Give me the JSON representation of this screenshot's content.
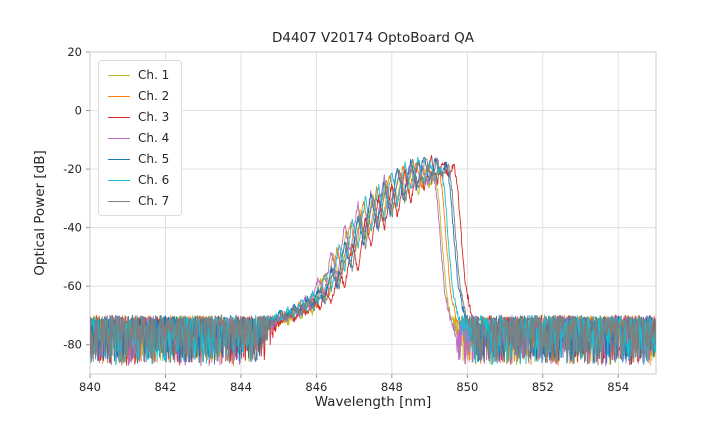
{
  "figure": {
    "title": "D4407 V20174 OptoBoard QA",
    "xlabel": "Wavelength [nm]",
    "ylabel": "Optical Power [dB]"
  },
  "chart_data": {
    "type": "line",
    "title": "D4407 V20174 OptoBoard QA",
    "xlabel": "Wavelength [nm]",
    "ylabel": "Optical Power [dB]",
    "xlim": [
      840,
      855
    ],
    "ylim": [
      -90,
      20
    ],
    "xticks": [
      840,
      842,
      844,
      846,
      848,
      850,
      852,
      854
    ],
    "yticks": [
      20,
      0,
      -20,
      -40,
      -60,
      -80
    ],
    "grid": true,
    "grid_color": "#dddddd",
    "axis_color": "#cccccc",
    "text_color": "#262626",
    "background": "#ffffff",
    "legend_position": "upper left",
    "sample_step_nm": 0.012,
    "noise": {
      "floor_top_db": -69.8,
      "band_db": 16,
      "signal_jitter_db": 1.2,
      "description": "dense noise floor between about -70 dB and -87 dB across full wavelength range"
    },
    "envelope_points": [
      [
        844.4,
        -86
      ],
      [
        844.7,
        -74
      ],
      [
        845.0,
        -70
      ],
      [
        845.15,
        -72
      ],
      [
        845.35,
        -68
      ],
      [
        845.5,
        -70
      ],
      [
        845.7,
        -65
      ],
      [
        845.85,
        -68
      ],
      [
        846.0,
        -62
      ],
      [
        846.15,
        -66
      ],
      [
        846.35,
        -55
      ],
      [
        846.5,
        -61
      ],
      [
        846.7,
        -46
      ],
      [
        846.85,
        -55
      ],
      [
        847.05,
        -37
      ],
      [
        847.2,
        -47
      ],
      [
        847.4,
        -29.5
      ],
      [
        847.55,
        -41
      ],
      [
        847.75,
        -25.5
      ],
      [
        847.9,
        -37
      ],
      [
        848.1,
        -20.5
      ],
      [
        848.25,
        -32
      ],
      [
        848.45,
        -17.5
      ],
      [
        848.6,
        -27
      ],
      [
        848.8,
        -16.5
      ],
      [
        848.95,
        -25
      ],
      [
        849.1,
        -17.5
      ],
      [
        849.25,
        -23
      ],
      [
        849.4,
        -19
      ],
      [
        849.5,
        -28
      ],
      [
        849.6,
        -45
      ],
      [
        849.7,
        -60
      ],
      [
        849.85,
        -70
      ],
      [
        850.0,
        -76
      ],
      [
        850.2,
        -100
      ]
    ],
    "series": [
      {
        "name": "Ch. 1",
        "color": "#bcbd22",
        "shift_nm": -0.25,
        "amp_db": -3.0,
        "seed": 101
      },
      {
        "name": "Ch. 2",
        "color": "#ff7f0e",
        "shift_nm": -0.15,
        "amp_db": -1.0,
        "seed": 202
      },
      {
        "name": "Ch. 3",
        "color": "#d62728",
        "shift_nm": 0.25,
        "amp_db": 0.5,
        "seed": 303
      },
      {
        "name": "Ch. 4",
        "color": "#bf6ac4",
        "shift_nm": -0.3,
        "amp_db": -2.0,
        "seed": 404
      },
      {
        "name": "Ch. 5",
        "color": "#1f77b4",
        "shift_nm": 0.05,
        "amp_db": 1.0,
        "seed": 505
      },
      {
        "name": "Ch. 6",
        "color": "#17becf",
        "shift_nm": -0.1,
        "amp_db": 0.0,
        "seed": 606
      },
      {
        "name": "Ch. 7",
        "color": "#7f7f7f",
        "shift_nm": 0.1,
        "amp_db": 0.5,
        "seed": 707
      }
    ]
  }
}
